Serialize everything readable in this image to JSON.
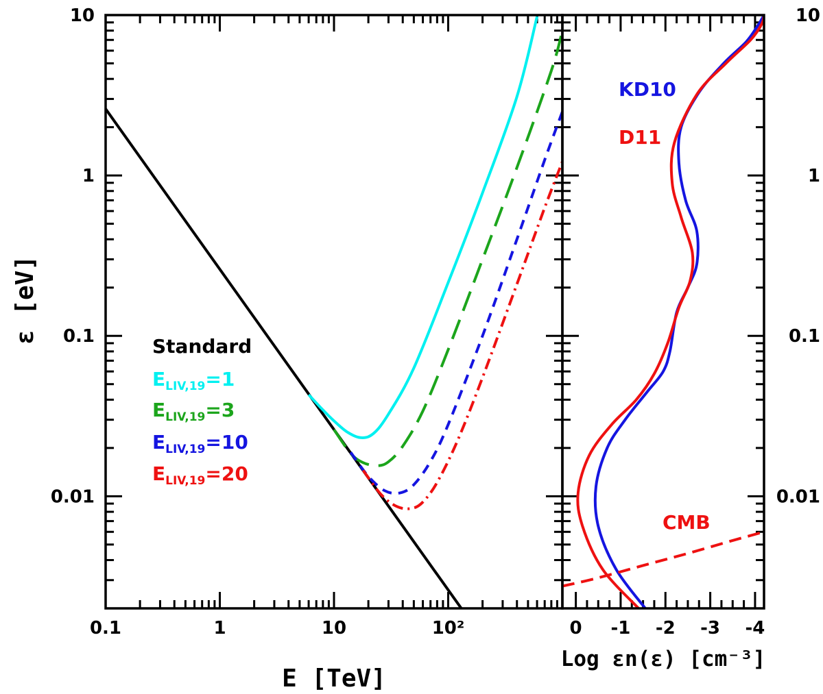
{
  "chart_data": [
    {
      "type": "line",
      "panel": "left",
      "xlabel": "E [TeV]",
      "ylabel": "ε [eV]",
      "xscale": "log",
      "yscale": "log",
      "xlim": [
        0.1,
        1000
      ],
      "ylim": [
        0.002,
        10
      ],
      "x_tick_labels": [
        "0.1",
        "1",
        "10",
        "10²"
      ],
      "y_tick_labels": [
        "0.01",
        "0.1",
        "1",
        "10"
      ],
      "series": [
        {
          "name": "Standard",
          "label": "Standard",
          "color": "#000000",
          "dash": "solid",
          "x": [
            0.1,
            0.3,
            1,
            3,
            10,
            30,
            100,
            135
          ],
          "y": [
            2.6,
            0.867,
            0.26,
            0.0867,
            0.026,
            0.00867,
            0.0026,
            0.00193
          ]
        },
        {
          "name": "E_LIV,19=1",
          "label_main": "E",
          "label_sub": "LIV,19",
          "label_tail": "=1",
          "color": "#00f0f0",
          "dash": "solid",
          "x": [
            6,
            8,
            10,
            13,
            17,
            22,
            30,
            50,
            100,
            200,
            400,
            600
          ],
          "y": [
            0.043,
            0.0345,
            0.0295,
            0.0252,
            0.0232,
            0.0245,
            0.0325,
            0.063,
            0.215,
            0.78,
            3.1,
            9.8
          ]
        },
        {
          "name": "E_LIV,19=3",
          "label_main": "E",
          "label_sub": "LIV,19",
          "label_tail": "=3",
          "color": "#1ca51c",
          "dash": "longdash",
          "x": [
            10,
            14,
            18,
            24,
            30,
            40,
            60,
            100,
            200,
            400,
            800,
            1000
          ],
          "y": [
            0.026,
            0.0185,
            0.0162,
            0.0155,
            0.0164,
            0.0205,
            0.034,
            0.082,
            0.3,
            1.12,
            4.5,
            8.0
          ]
        },
        {
          "name": "E_LIV,19=10",
          "label_main": "E",
          "label_sub": "LIV,19",
          "label_tail": "=10",
          "color": "#1515e0",
          "dash": "shortdash",
          "x": [
            14,
            20,
            28,
            38,
            50,
            70,
            100,
            200,
            400,
            700,
            1000
          ],
          "y": [
            0.0188,
            0.0133,
            0.0108,
            0.0105,
            0.0118,
            0.0165,
            0.028,
            0.1,
            0.4,
            1.25,
            2.5
          ]
        },
        {
          "name": "E_LIV,19=20",
          "label_main": "E",
          "label_sub": "LIV,19",
          "label_tail": "=20",
          "color": "#ee1111",
          "dash": "dashdot",
          "x": [
            18,
            26,
            36,
            48,
            60,
            80,
            120,
            200,
            400,
            700,
            1000
          ],
          "y": [
            0.0145,
            0.0102,
            0.0086,
            0.0084,
            0.0092,
            0.0122,
            0.022,
            0.055,
            0.21,
            0.63,
            1.22
          ]
        }
      ]
    },
    {
      "type": "line",
      "panel": "right",
      "xlabel": "Log εn(ε) [cm⁻³]",
      "ylabel": "ε [eV]",
      "xscale": "linear",
      "yscale": "log",
      "xlim": [
        0.3,
        -4.2
      ],
      "ylim": [
        0.002,
        10
      ],
      "x_tick_labels": [
        "0",
        "-1",
        "-2",
        "-3",
        "-4"
      ],
      "y_tick_labels": [
        "0.01",
        "0.1",
        "1",
        "10"
      ],
      "series": [
        {
          "name": "KD10",
          "label": "KD10",
          "color": "#1515e0",
          "dash": "solid",
          "x": [
            -1.55,
            -0.9,
            -0.5,
            -0.45,
            -0.7,
            -1.1,
            -1.6,
            -1.95,
            -2.1,
            -2.25,
            -2.5,
            -2.7,
            -2.7,
            -2.45,
            -2.3,
            -2.35,
            -2.75,
            -3.3,
            -3.8,
            -4.05,
            -4.2
          ],
          "y": [
            0.002,
            0.0035,
            0.0065,
            0.0115,
            0.02,
            0.03,
            0.045,
            0.06,
            0.08,
            0.14,
            0.2,
            0.28,
            0.45,
            0.7,
            1.2,
            2,
            3.3,
            5,
            6.8,
            8.5,
            10
          ]
        },
        {
          "name": "D11",
          "label": "D11",
          "color": "#ee1111",
          "dash": "solid",
          "x": [
            -1.4,
            -0.6,
            -0.15,
            -0.05,
            -0.3,
            -0.8,
            -1.35,
            -1.75,
            -2.05,
            -2.3,
            -2.55,
            -2.6,
            -2.35,
            -2.15,
            -2.2,
            -2.7,
            -3.35,
            -3.9,
            -4.15,
            -4.2
          ],
          "y": [
            0.002,
            0.0035,
            0.0065,
            0.0105,
            0.018,
            0.028,
            0.04,
            0.058,
            0.09,
            0.15,
            0.22,
            0.33,
            0.55,
            0.9,
            1.6,
            3.2,
            5,
            7,
            8.8,
            10
          ]
        },
        {
          "name": "CMB",
          "label": "CMB",
          "color": "#ee1111",
          "dash": "dash",
          "x": [
            0.3,
            -0.5,
            -1.5,
            -2.5,
            -3.5,
            -4.2
          ],
          "y": [
            0.00275,
            0.0031,
            0.0037,
            0.0044,
            0.0053,
            0.006
          ]
        }
      ]
    }
  ]
}
